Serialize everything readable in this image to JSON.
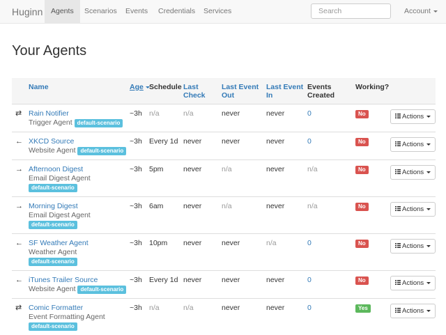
{
  "navbar": {
    "brand": "Huginn",
    "links": [
      "Agents",
      "Scenarios",
      "Events",
      "Credentials",
      "Services"
    ],
    "search_placeholder": "Search",
    "account": "Account"
  },
  "page_title": "Your Agents",
  "table": {
    "headers": [
      "Name",
      "Age",
      "Schedule",
      "Last Check",
      "Last Event Out",
      "Last Event In",
      "Events Created",
      "Working?"
    ],
    "rows": [
      {
        "name": "Rain Notifier",
        "type": "Trigger Agent",
        "scenario": "default-scenario",
        "age": "~3h",
        "schedule": "n/a",
        "last_check": "n/a",
        "last_event_out": "never",
        "last_event_in": "never",
        "events_created": 0,
        "working": "No",
        "actions": "Actions"
      },
      {
        "name": "XKCD Source",
        "type": "Website Agent",
        "scenario": "default-scenario",
        "age": "~3h",
        "schedule": "Every 1d",
        "last_check": "never",
        "last_event_out": "never",
        "last_event_in": "never",
        "events_created": 0,
        "working": "No",
        "actions": "Actions"
      },
      {
        "name": "Afternoon Digest",
        "type": "Email Digest Agent",
        "scenario": "default-scenario",
        "age": "~3h",
        "schedule": "5pm",
        "last_check": "never",
        "last_event_out": "n/a",
        "last_event_in": "never",
        "events_created": "n/a",
        "working": "No",
        "actions": "Actions"
      },
      {
        "name": "Morning Digest",
        "type": "Email Digest Agent",
        "scenario": "default-scenario",
        "age": "~3h",
        "schedule": "6am",
        "last_check": "never",
        "last_event_out": "n/a",
        "last_event_in": "never",
        "events_created": "n/a",
        "working": "No",
        "actions": "Actions"
      },
      {
        "name": "SF Weather Agent",
        "type": "Weather Agent",
        "scenario": "default-scenario",
        "age": "~3h",
        "schedule": "10pm",
        "last_check": "never",
        "last_event_out": "never",
        "last_event_in": "n/a",
        "events_created": 0,
        "working": "No",
        "actions": "Actions"
      },
      {
        "name": "iTunes Trailer Source",
        "type": "Website Agent",
        "scenario": "default-scenario",
        "age": "~3h",
        "schedule": "Every 1d",
        "last_check": "never",
        "last_event_out": "never",
        "last_event_in": "never",
        "events_created": 0,
        "working": "No",
        "actions": "Actions"
      },
      {
        "name": "Comic Formatter",
        "type": "Event Formatting Agent",
        "scenario": "default-scenario",
        "age": "~3h",
        "schedule": "n/a",
        "last_check": "n/a",
        "last_event_out": "never",
        "last_event_in": "never",
        "events_created": 0,
        "working": "Yes",
        "actions": "Actions"
      }
    ]
  }
}
